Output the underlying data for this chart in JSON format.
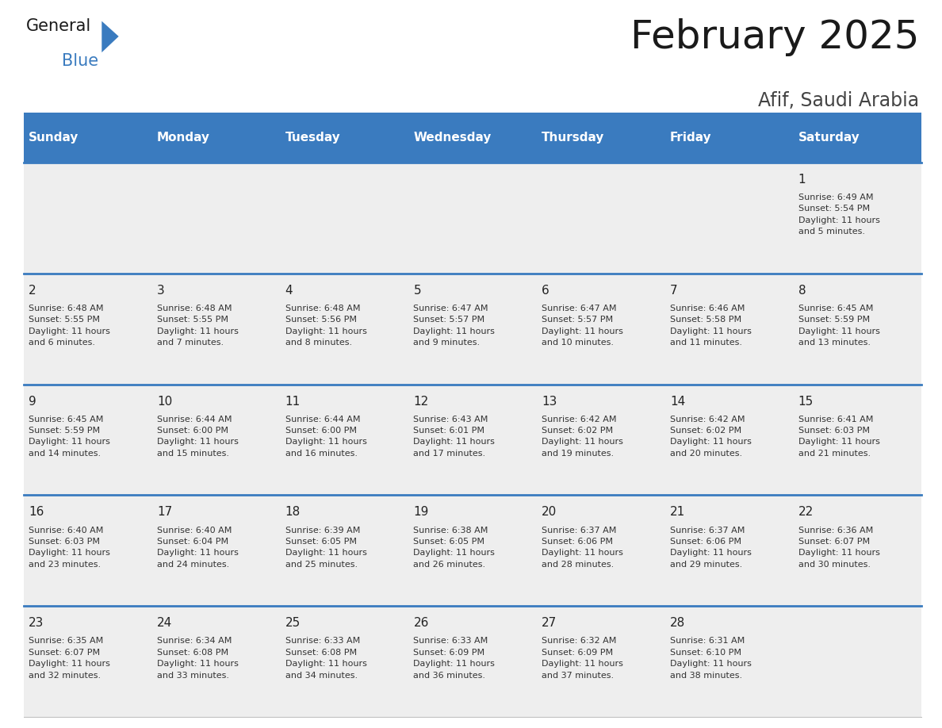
{
  "title": "February 2025",
  "subtitle": "Afif, Saudi Arabia",
  "header_bg": "#3a7bbf",
  "header_text_color": "#ffffff",
  "header_days": [
    "Sunday",
    "Monday",
    "Tuesday",
    "Wednesday",
    "Thursday",
    "Friday",
    "Saturday"
  ],
  "row0_bg": "#eeeeee",
  "row_bg": "#eeeeee",
  "separator_color": "#3a7bbf",
  "day_number_color": "#222222",
  "info_color": "#333333",
  "calendar_data": [
    {
      "day": 1,
      "col": 6,
      "row": 0,
      "sunrise": "6:49 AM",
      "sunset": "5:54 PM",
      "daylight": "11 hours\nand 5 minutes."
    },
    {
      "day": 2,
      "col": 0,
      "row": 1,
      "sunrise": "6:48 AM",
      "sunset": "5:55 PM",
      "daylight": "11 hours\nand 6 minutes."
    },
    {
      "day": 3,
      "col": 1,
      "row": 1,
      "sunrise": "6:48 AM",
      "sunset": "5:55 PM",
      "daylight": "11 hours\nand 7 minutes."
    },
    {
      "day": 4,
      "col": 2,
      "row": 1,
      "sunrise": "6:48 AM",
      "sunset": "5:56 PM",
      "daylight": "11 hours\nand 8 minutes."
    },
    {
      "day": 5,
      "col": 3,
      "row": 1,
      "sunrise": "6:47 AM",
      "sunset": "5:57 PM",
      "daylight": "11 hours\nand 9 minutes."
    },
    {
      "day": 6,
      "col": 4,
      "row": 1,
      "sunrise": "6:47 AM",
      "sunset": "5:57 PM",
      "daylight": "11 hours\nand 10 minutes."
    },
    {
      "day": 7,
      "col": 5,
      "row": 1,
      "sunrise": "6:46 AM",
      "sunset": "5:58 PM",
      "daylight": "11 hours\nand 11 minutes."
    },
    {
      "day": 8,
      "col": 6,
      "row": 1,
      "sunrise": "6:45 AM",
      "sunset": "5:59 PM",
      "daylight": "11 hours\nand 13 minutes."
    },
    {
      "day": 9,
      "col": 0,
      "row": 2,
      "sunrise": "6:45 AM",
      "sunset": "5:59 PM",
      "daylight": "11 hours\nand 14 minutes."
    },
    {
      "day": 10,
      "col": 1,
      "row": 2,
      "sunrise": "6:44 AM",
      "sunset": "6:00 PM",
      "daylight": "11 hours\nand 15 minutes."
    },
    {
      "day": 11,
      "col": 2,
      "row": 2,
      "sunrise": "6:44 AM",
      "sunset": "6:00 PM",
      "daylight": "11 hours\nand 16 minutes."
    },
    {
      "day": 12,
      "col": 3,
      "row": 2,
      "sunrise": "6:43 AM",
      "sunset": "6:01 PM",
      "daylight": "11 hours\nand 17 minutes."
    },
    {
      "day": 13,
      "col": 4,
      "row": 2,
      "sunrise": "6:42 AM",
      "sunset": "6:02 PM",
      "daylight": "11 hours\nand 19 minutes."
    },
    {
      "day": 14,
      "col": 5,
      "row": 2,
      "sunrise": "6:42 AM",
      "sunset": "6:02 PM",
      "daylight": "11 hours\nand 20 minutes."
    },
    {
      "day": 15,
      "col": 6,
      "row": 2,
      "sunrise": "6:41 AM",
      "sunset": "6:03 PM",
      "daylight": "11 hours\nand 21 minutes."
    },
    {
      "day": 16,
      "col": 0,
      "row": 3,
      "sunrise": "6:40 AM",
      "sunset": "6:03 PM",
      "daylight": "11 hours\nand 23 minutes."
    },
    {
      "day": 17,
      "col": 1,
      "row": 3,
      "sunrise": "6:40 AM",
      "sunset": "6:04 PM",
      "daylight": "11 hours\nand 24 minutes."
    },
    {
      "day": 18,
      "col": 2,
      "row": 3,
      "sunrise": "6:39 AM",
      "sunset": "6:05 PM",
      "daylight": "11 hours\nand 25 minutes."
    },
    {
      "day": 19,
      "col": 3,
      "row": 3,
      "sunrise": "6:38 AM",
      "sunset": "6:05 PM",
      "daylight": "11 hours\nand 26 minutes."
    },
    {
      "day": 20,
      "col": 4,
      "row": 3,
      "sunrise": "6:37 AM",
      "sunset": "6:06 PM",
      "daylight": "11 hours\nand 28 minutes."
    },
    {
      "day": 21,
      "col": 5,
      "row": 3,
      "sunrise": "6:37 AM",
      "sunset": "6:06 PM",
      "daylight": "11 hours\nand 29 minutes."
    },
    {
      "day": 22,
      "col": 6,
      "row": 3,
      "sunrise": "6:36 AM",
      "sunset": "6:07 PM",
      "daylight": "11 hours\nand 30 minutes."
    },
    {
      "day": 23,
      "col": 0,
      "row": 4,
      "sunrise": "6:35 AM",
      "sunset": "6:07 PM",
      "daylight": "11 hours\nand 32 minutes."
    },
    {
      "day": 24,
      "col": 1,
      "row": 4,
      "sunrise": "6:34 AM",
      "sunset": "6:08 PM",
      "daylight": "11 hours\nand 33 minutes."
    },
    {
      "day": 25,
      "col": 2,
      "row": 4,
      "sunrise": "6:33 AM",
      "sunset": "6:08 PM",
      "daylight": "11 hours\nand 34 minutes."
    },
    {
      "day": 26,
      "col": 3,
      "row": 4,
      "sunrise": "6:33 AM",
      "sunset": "6:09 PM",
      "daylight": "11 hours\nand 36 minutes."
    },
    {
      "day": 27,
      "col": 4,
      "row": 4,
      "sunrise": "6:32 AM",
      "sunset": "6:09 PM",
      "daylight": "11 hours\nand 37 minutes."
    },
    {
      "day": 28,
      "col": 5,
      "row": 4,
      "sunrise": "6:31 AM",
      "sunset": "6:10 PM",
      "daylight": "11 hours\nand 38 minutes."
    }
  ],
  "num_rows": 5,
  "num_cols": 7,
  "fig_width": 11.88,
  "fig_height": 9.18,
  "logo_general_color": "#1a1a1a",
  "logo_blue_color": "#3a7bbf",
  "title_color": "#1a1a1a",
  "subtitle_color": "#444444"
}
